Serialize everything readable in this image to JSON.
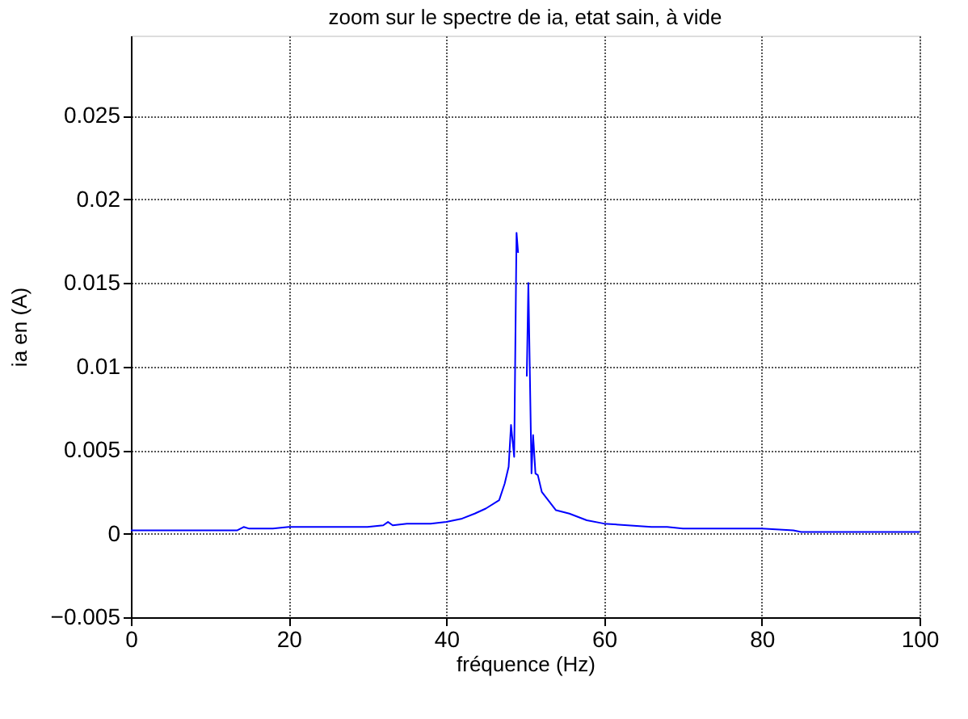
{
  "chart_data": {
    "type": "line",
    "title": "zoom sur le spectre de ia, etat sain, à vide",
    "xlabel": "fréquence (Hz)",
    "ylabel": "ia en (A)",
    "x": [
      0,
      10,
      13.5,
      14.3,
      15,
      18,
      20,
      25,
      30,
      32,
      32.6,
      33.2,
      35,
      38,
      40,
      42,
      43.6,
      45,
      46.7,
      47.4,
      47.9,
      48.2,
      48.6,
      48.9,
      49.1,
      49.5,
      50.1,
      50.2,
      50.4,
      50.8,
      51.0,
      51.3,
      51.6,
      52.1,
      53.9,
      55.6,
      57.8,
      60,
      63,
      66,
      68,
      70,
      75,
      80,
      84,
      85,
      90,
      100
    ],
    "series": [
      {
        "color": "#0000ff",
        "values": [
          0.0002,
          0.0002,
          0.0002,
          0.0004,
          0.0003,
          0.0003,
          0.0004,
          0.0004,
          0.0004,
          0.0005,
          0.0007,
          0.0005,
          0.0006,
          0.0006,
          0.0007,
          0.0009,
          0.0012,
          0.0015,
          0.002,
          0.003,
          0.004,
          0.0065,
          0.0046,
          0.018,
          0.0168,
          null,
          null,
          0.0094,
          0.015,
          0.0036,
          0.0059,
          0.0036,
          0.0035,
          0.0025,
          0.0014,
          0.0012,
          0.0008,
          0.0006,
          0.0005,
          0.0004,
          0.0004,
          0.0003,
          0.0003,
          0.0003,
          0.0002,
          0.0001,
          0.0001,
          0.0001
        ]
      }
    ],
    "xlim": [
      0,
      100
    ],
    "xticks": [
      0,
      20,
      40,
      60,
      80,
      100
    ],
    "ylim": [
      -0.005,
      0.0298
    ],
    "yticks": [
      -0.005,
      0,
      0.005,
      0.01,
      0.015,
      0.02,
      0.025
    ],
    "grid": true,
    "line_style": "solid",
    "marker": "none"
  }
}
